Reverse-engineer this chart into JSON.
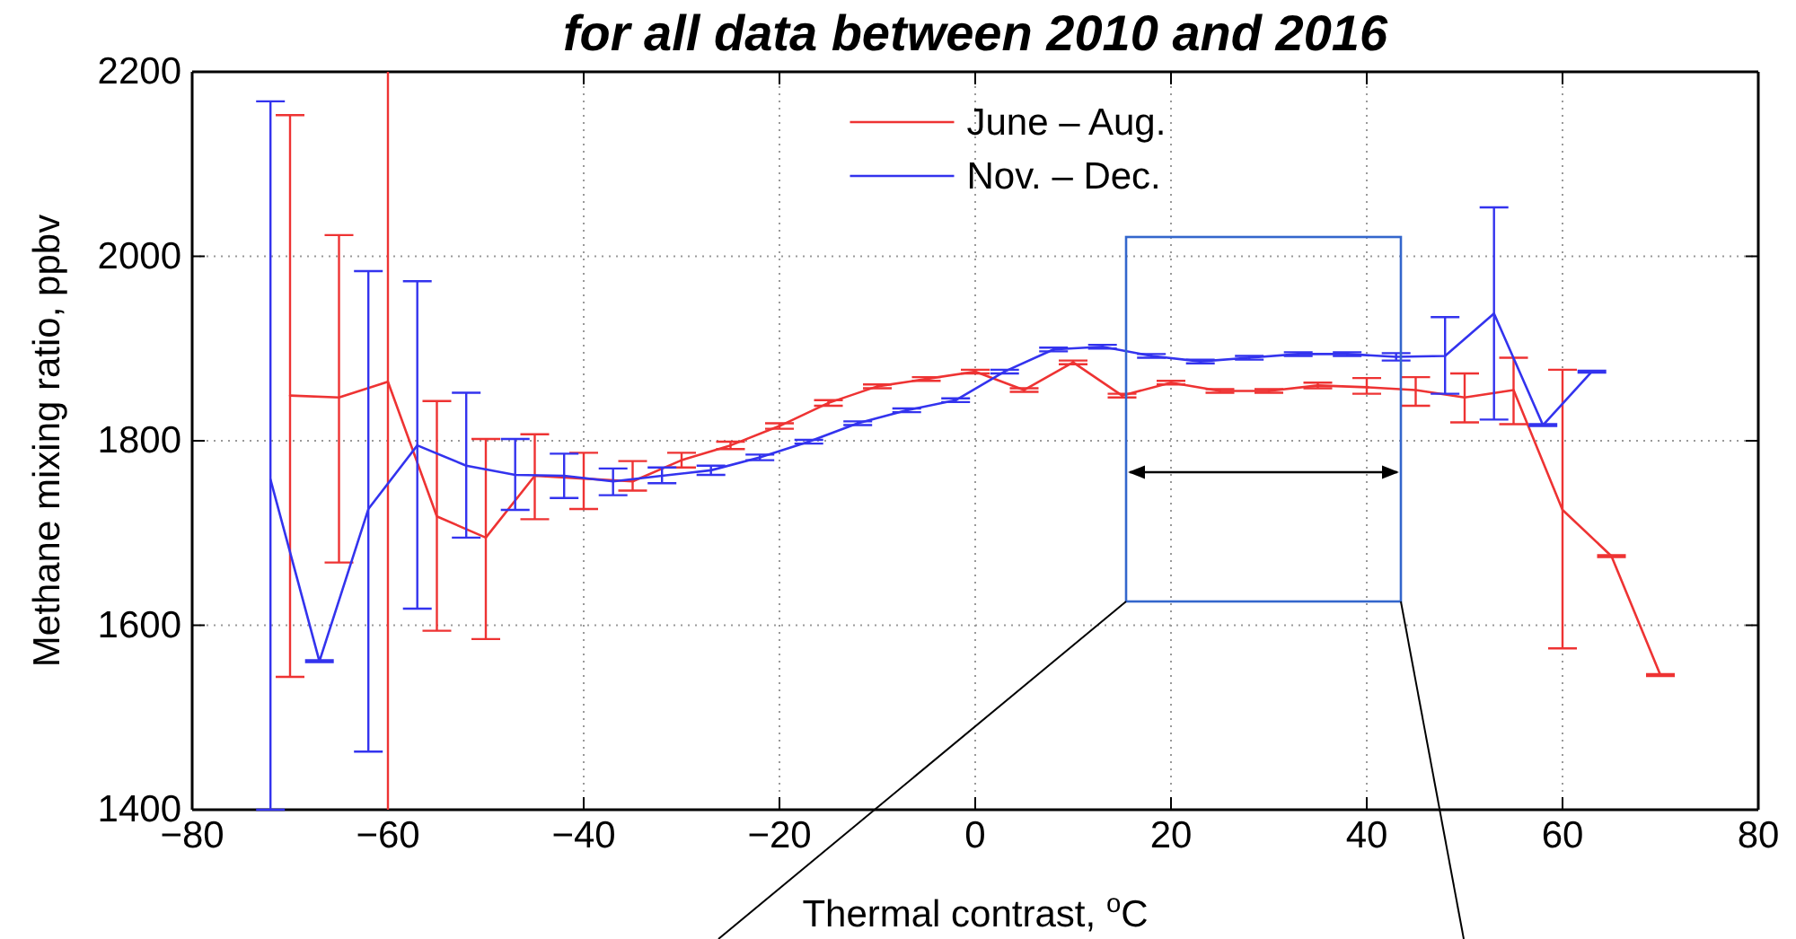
{
  "chart_data": {
    "type": "line",
    "title": "for all data between 2010 and 2016",
    "xlabel": "Thermal contrast, $^{o}$C",
    "ylabel": "Methane mixing ratio, ppbv",
    "xlim": [
      -80,
      80
    ],
    "xticks": [
      -80,
      -60,
      -40,
      -20,
      0,
      20,
      40,
      60,
      80
    ],
    "ylim": [
      1400,
      2200
    ],
    "yticks": [
      1400,
      1600,
      1800,
      2000,
      2200
    ],
    "grid": true,
    "legend": "top",
    "ref_lines": [
      {
        "axis": "x",
        "value": -60,
        "color": "#ee3333"
      }
    ],
    "line_style": "solid",
    "marker": "none",
    "series": [
      {
        "name": "June – Aug.",
        "color": "#ee3333",
        "x": [
          -70,
          -65,
          -60,
          -55,
          -50,
          -45,
          -40,
          -35,
          -30,
          -25,
          -20,
          -15,
          -10,
          -5,
          0,
          5,
          10,
          15,
          20,
          25,
          30,
          35,
          40,
          45,
          50,
          55,
          60,
          65,
          70
        ],
        "values": [
          1849,
          1847,
          1864,
          1718,
          1695,
          1762,
          1759,
          1756,
          1779,
          1795,
          1816,
          1841,
          1859,
          1867,
          1875,
          1855,
          1885,
          1849,
          1863,
          1854,
          1854,
          1860,
          1858,
          1855,
          1847,
          1855,
          1725,
          1675,
          1546
        ],
        "errors": [
          [
            1544,
            2153
          ],
          [
            1668,
            2023
          ],
          null,
          [
            1594,
            1843
          ],
          [
            1585,
            1802
          ],
          [
            1715,
            1807
          ],
          [
            1726,
            1787
          ],
          [
            1746,
            1778
          ],
          [
            1771,
            1787
          ],
          [
            1791,
            1799
          ],
          [
            1813,
            1819
          ],
          [
            1838,
            1844
          ],
          [
            1857,
            1861
          ],
          [
            1865,
            1869
          ],
          [
            1873,
            1877
          ],
          [
            1853,
            1857
          ],
          [
            1883,
            1887
          ],
          [
            1847,
            1851
          ],
          [
            1861,
            1865
          ],
          [
            1852,
            1856
          ],
          [
            1852,
            1856
          ],
          [
            1857,
            1863
          ],
          [
            1851,
            1868
          ],
          [
            1838,
            1869
          ],
          [
            1820,
            1873
          ],
          [
            1818,
            1890
          ],
          [
            1575,
            1877
          ],
          [
            1674,
            1676
          ],
          [
            1545,
            1547
          ]
        ]
      },
      {
        "name": "Nov. – Dec.",
        "color": "#3333ee",
        "x": [
          -72,
          -67,
          -62,
          -57,
          -52,
          -47,
          -42,
          -37,
          -32,
          -27,
          -22,
          -17,
          -12,
          -7,
          -2,
          3,
          8,
          13,
          18,
          23,
          28,
          33,
          38,
          43,
          48,
          53,
          58,
          63
        ],
        "values": [
          1758,
          1561,
          1726,
          1795,
          1773,
          1763,
          1762,
          1756,
          1762,
          1768,
          1782,
          1799,
          1819,
          1833,
          1844,
          1875,
          1899,
          1902,
          1892,
          1886,
          1890,
          1894,
          1894,
          1891,
          1892,
          1938,
          1817,
          1875
        ],
        "errors": [
          [
            1400,
            2168
          ],
          [
            1560,
            1562
          ],
          [
            1463,
            1984
          ],
          [
            1618,
            1973
          ],
          [
            1695,
            1852
          ],
          [
            1725,
            1802
          ],
          [
            1738,
            1786
          ],
          [
            1741,
            1770
          ],
          [
            1754,
            1771
          ],
          [
            1763,
            1773
          ],
          [
            1779,
            1785
          ],
          [
            1797,
            1801
          ],
          [
            1817,
            1821
          ],
          [
            1831,
            1835
          ],
          [
            1842,
            1846
          ],
          [
            1873,
            1877
          ],
          [
            1897,
            1901
          ],
          [
            1900,
            1904
          ],
          [
            1890,
            1894
          ],
          [
            1884,
            1888
          ],
          [
            1888,
            1892
          ],
          [
            1892,
            1896
          ],
          [
            1892,
            1896
          ],
          [
            1887,
            1895
          ],
          [
            1851,
            1934
          ],
          [
            1823,
            2053
          ],
          [
            1816,
            1818
          ],
          [
            1874,
            1876
          ]
        ]
      }
    ]
  }
}
